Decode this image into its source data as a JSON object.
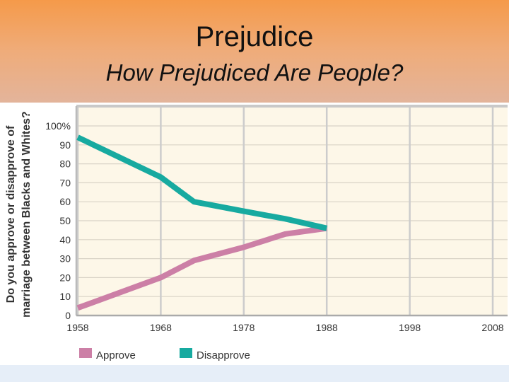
{
  "slide": {
    "title": "Prejudice",
    "subtitle": "How Prejudiced Are People?"
  },
  "chart_data": {
    "type": "line",
    "ylabel_line1": "Do you approve  or disapprove of",
    "ylabel_line2": "marriage between Blacks and Whites?",
    "x_ticks": [
      "1958",
      "1968",
      "1978",
      "1988",
      "1998",
      "2008"
    ],
    "y_ticks": [
      "100%",
      "90",
      "80",
      "70",
      "60",
      "50",
      "40",
      "30",
      "20",
      "10",
      "0"
    ],
    "xlim": [
      1958,
      2008
    ],
    "ylim": [
      0,
      100
    ],
    "grid": true,
    "legend_position": "bottom",
    "series": [
      {
        "name": "Approve",
        "color": "#cc7fa6",
        "x": [
          1958,
          1968,
          1972,
          1978,
          1983,
          1988
        ],
        "y": [
          4,
          20,
          29,
          36,
          43,
          46
        ]
      },
      {
        "name": "Disapprove",
        "color": "#17aaa0",
        "x": [
          1958,
          1968,
          1972,
          1978,
          1983,
          1988
        ],
        "y": [
          94,
          73,
          60,
          55,
          51,
          46
        ]
      }
    ]
  }
}
